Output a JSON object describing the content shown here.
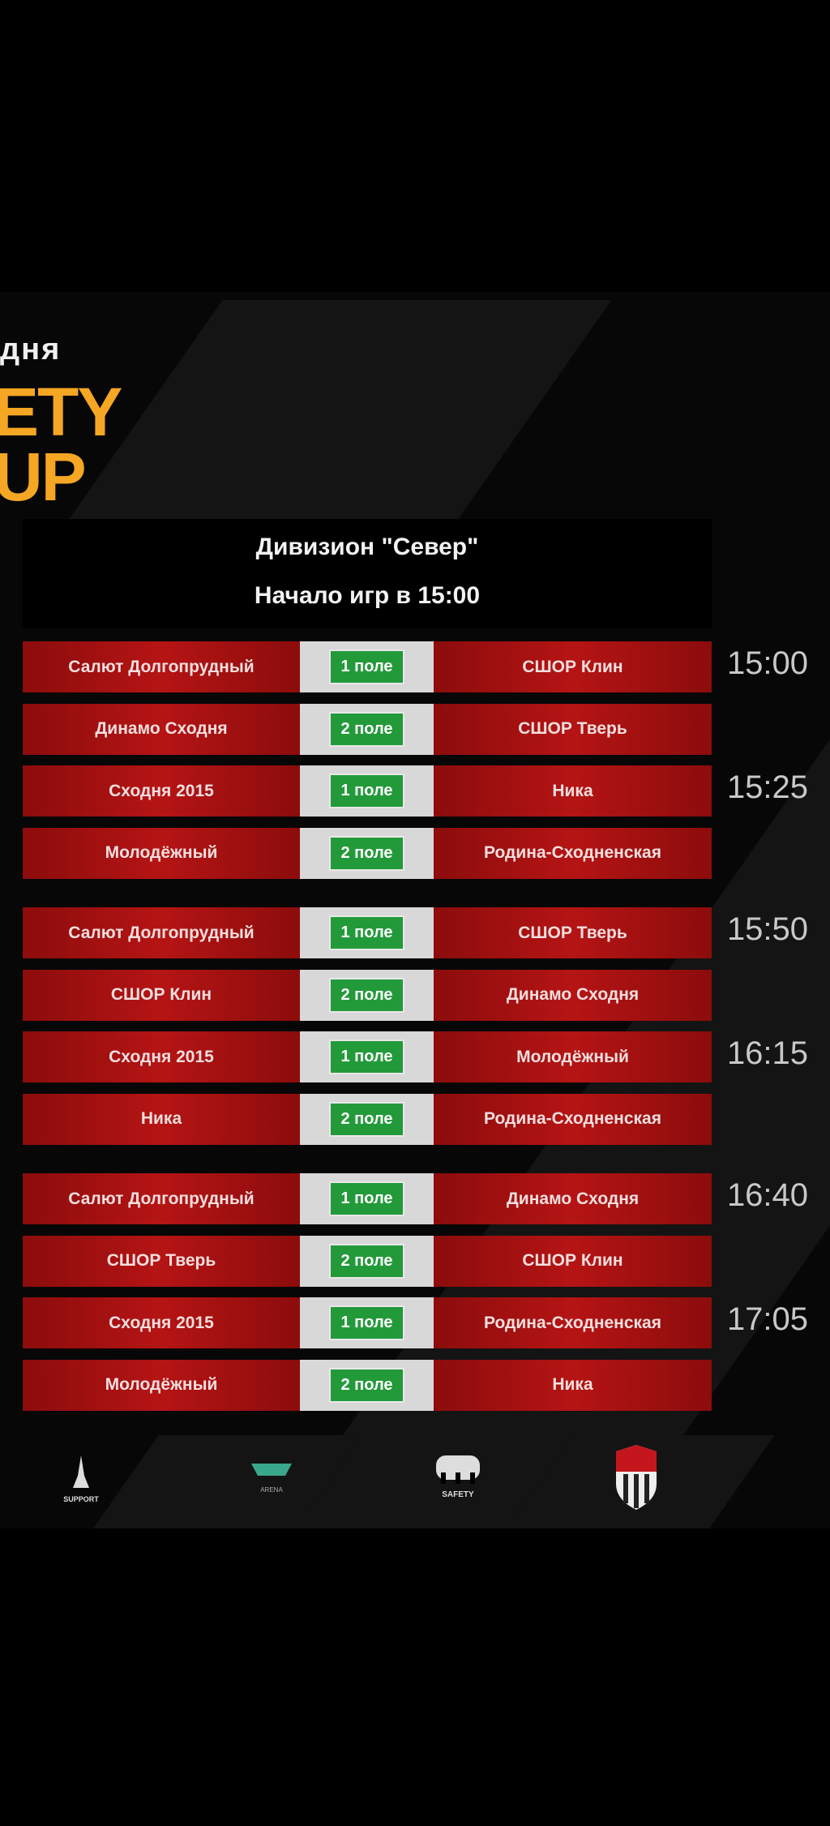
{
  "header": {
    "line1": "дня",
    "line2": "ETY",
    "line3": "UP",
    "accent": "#f5a623"
  },
  "division": {
    "title": "Дивизион \"Север\"",
    "subtitle": "Начало игр в 15:00"
  },
  "matches": [
    {
      "home": "Салют Долгопрудный",
      "field": "1 поле",
      "away": "СШОР Клин",
      "time": "15:00"
    },
    {
      "home": "Динамо Сходня",
      "field": "2 поле",
      "away": "СШОР Тверь"
    },
    {
      "home": "Сходня 2015",
      "field": "1 поле",
      "away": "Ника",
      "time": "15:25"
    },
    {
      "home": "Молодёжный",
      "field": "2 поле",
      "away": "Родина-Сходненская"
    },
    {
      "home": "Салют Долгопрудный",
      "field": "1 поле",
      "away": "СШОР Тверь",
      "time": "15:50"
    },
    {
      "home": "СШОР Клин",
      "field": "2 поле",
      "away": "Динамо Сходня"
    },
    {
      "home": "Сходня 2015",
      "field": "1 поле",
      "away": "Молодёжный",
      "time": "16:15"
    },
    {
      "home": "Ника",
      "field": "2 поле",
      "away": "Родина-Сходненская"
    },
    {
      "home": "Салют Долгопрудный",
      "field": "1 поле",
      "away": "Динамо Сходня",
      "time": "16:40"
    },
    {
      "home": "СШОР Тверь",
      "field": "2 поле",
      "away": "СШОР Клин"
    },
    {
      "home": "Сходня 2015",
      "field": "1 поле",
      "away": "Родина-Сходненская",
      "time": "17:05"
    },
    {
      "home": "Молодёжный",
      "field": "2 поле",
      "away": "Ника"
    }
  ],
  "sponsors": [
    {
      "icon": "support-logo",
      "text": "SUPPORT"
    },
    {
      "icon": "arena-logo",
      "text": "ARENA"
    },
    {
      "icon": "safety-logo",
      "text": "SAFETY"
    },
    {
      "icon": "club-shield-logo"
    }
  ]
}
